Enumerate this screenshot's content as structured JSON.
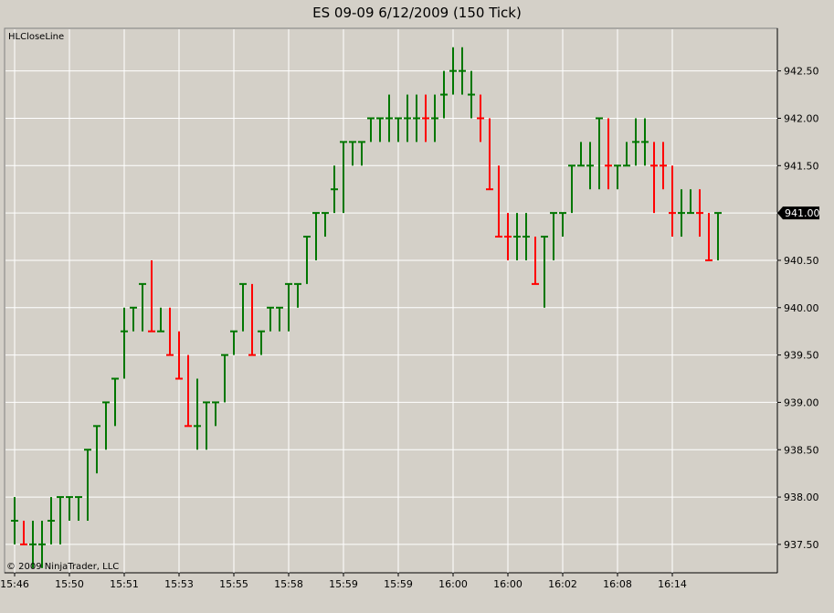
{
  "window": {
    "title": "ES 09-09  6/12/2009 (150 Tick)"
  },
  "chart_data": {
    "type": "ohlc",
    "title": "ES 09-09  6/12/2009 (150 Tick)",
    "indicator_label": "HLCloseLine",
    "copyright": "© 2009 NinjaTrader, LLC",
    "last_price_label": "941.00",
    "ylim": [
      937.2,
      942.95
    ],
    "y_ticks": [
      "937.50",
      "938.00",
      "938.50",
      "939.00",
      "939.50",
      "940.00",
      "940.50",
      "941.00",
      "941.50",
      "942.00",
      "942.50"
    ],
    "x_ticks": [
      {
        "i": 0,
        "label": "15:46"
      },
      {
        "i": 6,
        "label": "15:50"
      },
      {
        "i": 12,
        "label": "15:51"
      },
      {
        "i": 18,
        "label": "15:53"
      },
      {
        "i": 24,
        "label": "15:55"
      },
      {
        "i": 30,
        "label": "15:58"
      },
      {
        "i": 36,
        "label": "15:59"
      },
      {
        "i": 42,
        "label": "15:59"
      },
      {
        "i": 48,
        "label": "16:00"
      },
      {
        "i": 54,
        "label": "16:00"
      },
      {
        "i": 60,
        "label": "16:02"
      },
      {
        "i": 66,
        "label": "16:08"
      },
      {
        "i": 72,
        "label": "16:14"
      }
    ],
    "colors": {
      "up": "#007700",
      "down": "#ff0000",
      "grid": "#ffffff",
      "background": "#d4d0c8"
    },
    "bars": [
      {
        "o": 937.75,
        "h": 938.0,
        "l": 937.5,
        "c": 937.75,
        "d": "up"
      },
      {
        "o": 937.75,
        "h": 937.75,
        "l": 937.5,
        "c": 937.5,
        "d": "down"
      },
      {
        "o": 937.5,
        "h": 937.75,
        "l": 937.25,
        "c": 937.5,
        "d": "up"
      },
      {
        "o": 937.5,
        "h": 937.75,
        "l": 937.25,
        "c": 937.5,
        "d": "up"
      },
      {
        "o": 937.5,
        "h": 938.0,
        "l": 937.5,
        "c": 937.75,
        "d": "up"
      },
      {
        "o": 937.75,
        "h": 938.0,
        "l": 937.5,
        "c": 938.0,
        "d": "up"
      },
      {
        "o": 938.0,
        "h": 938.0,
        "l": 937.75,
        "c": 938.0,
        "d": "up"
      },
      {
        "o": 938.0,
        "h": 938.0,
        "l": 937.75,
        "c": 938.0,
        "d": "up"
      },
      {
        "o": 938.0,
        "h": 938.5,
        "l": 937.75,
        "c": 938.5,
        "d": "up"
      },
      {
        "o": 938.5,
        "h": 938.75,
        "l": 938.25,
        "c": 938.75,
        "d": "up"
      },
      {
        "o": 938.75,
        "h": 939.0,
        "l": 938.5,
        "c": 939.0,
        "d": "up"
      },
      {
        "o": 939.0,
        "h": 939.25,
        "l": 938.75,
        "c": 939.25,
        "d": "up"
      },
      {
        "o": 939.25,
        "h": 940.0,
        "l": 939.25,
        "c": 939.75,
        "d": "up"
      },
      {
        "o": 939.75,
        "h": 940.0,
        "l": 939.75,
        "c": 940.0,
        "d": "up"
      },
      {
        "o": 940.0,
        "h": 940.25,
        "l": 939.75,
        "c": 940.25,
        "d": "up"
      },
      {
        "o": 940.25,
        "h": 940.5,
        "l": 939.75,
        "c": 939.75,
        "d": "down"
      },
      {
        "o": 939.75,
        "h": 940.0,
        "l": 939.75,
        "c": 939.75,
        "d": "up"
      },
      {
        "o": 939.75,
        "h": 940.0,
        "l": 939.5,
        "c": 939.5,
        "d": "down"
      },
      {
        "o": 939.5,
        "h": 939.75,
        "l": 939.25,
        "c": 939.25,
        "d": "down"
      },
      {
        "o": 939.25,
        "h": 939.5,
        "l": 938.75,
        "c": 938.75,
        "d": "down"
      },
      {
        "o": 938.75,
        "h": 939.25,
        "l": 938.5,
        "c": 938.75,
        "d": "up"
      },
      {
        "o": 938.75,
        "h": 939.0,
        "l": 938.5,
        "c": 939.0,
        "d": "up"
      },
      {
        "o": 939.0,
        "h": 939.0,
        "l": 938.75,
        "c": 939.0,
        "d": "up"
      },
      {
        "o": 939.0,
        "h": 939.5,
        "l": 939.0,
        "c": 939.5,
        "d": "up"
      },
      {
        "o": 939.5,
        "h": 939.75,
        "l": 939.5,
        "c": 939.75,
        "d": "up"
      },
      {
        "o": 939.75,
        "h": 940.25,
        "l": 939.75,
        "c": 940.25,
        "d": "up"
      },
      {
        "o": 940.25,
        "h": 940.25,
        "l": 939.5,
        "c": 939.5,
        "d": "down"
      },
      {
        "o": 939.5,
        "h": 939.75,
        "l": 939.5,
        "c": 939.75,
        "d": "up"
      },
      {
        "o": 939.75,
        "h": 940.0,
        "l": 939.75,
        "c": 940.0,
        "d": "up"
      },
      {
        "o": 940.0,
        "h": 940.0,
        "l": 939.75,
        "c": 940.0,
        "d": "up"
      },
      {
        "o": 940.0,
        "h": 940.25,
        "l": 939.75,
        "c": 940.25,
        "d": "up"
      },
      {
        "o": 940.25,
        "h": 940.25,
        "l": 940.0,
        "c": 940.25,
        "d": "up"
      },
      {
        "o": 940.25,
        "h": 940.75,
        "l": 940.25,
        "c": 940.75,
        "d": "up"
      },
      {
        "o": 940.75,
        "h": 941.0,
        "l": 940.5,
        "c": 941.0,
        "d": "up"
      },
      {
        "o": 941.0,
        "h": 941.0,
        "l": 940.75,
        "c": 941.0,
        "d": "up"
      },
      {
        "o": 941.0,
        "h": 941.5,
        "l": 941.0,
        "c": 941.25,
        "d": "up"
      },
      {
        "o": 941.25,
        "h": 941.75,
        "l": 941.0,
        "c": 941.75,
        "d": "up"
      },
      {
        "o": 941.75,
        "h": 941.75,
        "l": 941.5,
        "c": 941.75,
        "d": "up"
      },
      {
        "o": 941.75,
        "h": 941.75,
        "l": 941.5,
        "c": 941.75,
        "d": "up"
      },
      {
        "o": 941.75,
        "h": 942.0,
        "l": 941.75,
        "c": 942.0,
        "d": "up"
      },
      {
        "o": 942.0,
        "h": 942.0,
        "l": 941.75,
        "c": 942.0,
        "d": "up"
      },
      {
        "o": 942.0,
        "h": 942.25,
        "l": 941.75,
        "c": 942.0,
        "d": "up"
      },
      {
        "o": 942.0,
        "h": 942.0,
        "l": 941.75,
        "c": 942.0,
        "d": "up"
      },
      {
        "o": 942.0,
        "h": 942.25,
        "l": 941.75,
        "c": 942.0,
        "d": "up"
      },
      {
        "o": 942.0,
        "h": 942.25,
        "l": 941.75,
        "c": 942.0,
        "d": "up"
      },
      {
        "o": 942.25,
        "h": 942.25,
        "l": 941.75,
        "c": 942.0,
        "d": "down"
      },
      {
        "o": 942.0,
        "h": 942.25,
        "l": 941.75,
        "c": 942.0,
        "d": "up"
      },
      {
        "o": 942.0,
        "h": 942.5,
        "l": 942.0,
        "c": 942.25,
        "d": "up"
      },
      {
        "o": 942.25,
        "h": 942.75,
        "l": 942.25,
        "c": 942.5,
        "d": "up"
      },
      {
        "o": 942.5,
        "h": 942.75,
        "l": 942.25,
        "c": 942.5,
        "d": "up"
      },
      {
        "o": 942.5,
        "h": 942.5,
        "l": 942.0,
        "c": 942.25,
        "d": "up"
      },
      {
        "o": 942.25,
        "h": 942.25,
        "l": 941.75,
        "c": 942.0,
        "d": "down"
      },
      {
        "o": 942.0,
        "h": 942.0,
        "l": 941.25,
        "c": 941.25,
        "d": "down"
      },
      {
        "o": 941.25,
        "h": 941.5,
        "l": 940.75,
        "c": 940.75,
        "d": "down"
      },
      {
        "o": 940.75,
        "h": 941.0,
        "l": 940.5,
        "c": 940.75,
        "d": "down"
      },
      {
        "o": 940.75,
        "h": 941.0,
        "l": 940.5,
        "c": 940.75,
        "d": "up"
      },
      {
        "o": 940.75,
        "h": 941.0,
        "l": 940.5,
        "c": 940.75,
        "d": "up"
      },
      {
        "o": 940.75,
        "h": 940.75,
        "l": 940.25,
        "c": 940.25,
        "d": "down"
      },
      {
        "o": 940.25,
        "h": 940.75,
        "l": 940.0,
        "c": 940.75,
        "d": "up"
      },
      {
        "o": 940.75,
        "h": 941.0,
        "l": 940.5,
        "c": 941.0,
        "d": "up"
      },
      {
        "o": 941.0,
        "h": 941.0,
        "l": 940.75,
        "c": 941.0,
        "d": "up"
      },
      {
        "o": 941.0,
        "h": 941.5,
        "l": 941.0,
        "c": 941.5,
        "d": "up"
      },
      {
        "o": 941.5,
        "h": 941.75,
        "l": 941.5,
        "c": 941.5,
        "d": "up"
      },
      {
        "o": 941.5,
        "h": 941.75,
        "l": 941.25,
        "c": 941.5,
        "d": "up"
      },
      {
        "o": 941.5,
        "h": 942.0,
        "l": 941.25,
        "c": 942.0,
        "d": "up"
      },
      {
        "o": 942.0,
        "h": 942.0,
        "l": 941.25,
        "c": 941.5,
        "d": "down"
      },
      {
        "o": 941.5,
        "h": 941.5,
        "l": 941.25,
        "c": 941.5,
        "d": "up"
      },
      {
        "o": 941.5,
        "h": 941.75,
        "l": 941.5,
        "c": 941.5,
        "d": "up"
      },
      {
        "o": 941.5,
        "h": 942.0,
        "l": 941.5,
        "c": 941.75,
        "d": "up"
      },
      {
        "o": 941.75,
        "h": 942.0,
        "l": 941.5,
        "c": 941.75,
        "d": "up"
      },
      {
        "o": 941.75,
        "h": 941.75,
        "l": 941.0,
        "c": 941.5,
        "d": "down"
      },
      {
        "o": 941.5,
        "h": 941.75,
        "l": 941.25,
        "c": 941.5,
        "d": "down"
      },
      {
        "o": 941.5,
        "h": 941.5,
        "l": 940.75,
        "c": 941.0,
        "d": "down"
      },
      {
        "o": 941.0,
        "h": 941.25,
        "l": 940.75,
        "c": 941.0,
        "d": "up"
      },
      {
        "o": 941.0,
        "h": 941.25,
        "l": 941.0,
        "c": 941.0,
        "d": "up"
      },
      {
        "o": 941.25,
        "h": 941.25,
        "l": 940.75,
        "c": 941.0,
        "d": "down"
      },
      {
        "o": 941.0,
        "h": 941.0,
        "l": 940.5,
        "c": 940.5,
        "d": "down"
      },
      {
        "o": 940.5,
        "h": 941.0,
        "l": 940.5,
        "c": 941.0,
        "d": "up"
      }
    ]
  }
}
